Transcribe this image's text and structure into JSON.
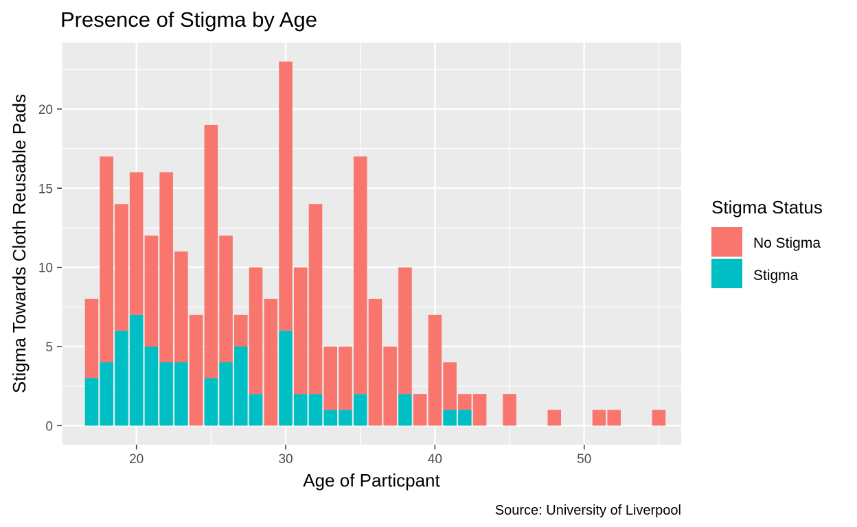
{
  "chart_data": {
    "type": "bar",
    "stacked": true,
    "title": "Presence of Stigma by Age",
    "xlabel": "Age of Particpant",
    "ylabel": "Stigma Towards Cloth Reusable Pads",
    "caption": "Source: University of Liverpool",
    "xlim": [
      15,
      56.5
    ],
    "ylim": [
      -1.2,
      24.2
    ],
    "x_ticks": [
      20,
      30,
      40,
      50
    ],
    "y_ticks": [
      0,
      5,
      10,
      15,
      20
    ],
    "grid": true,
    "legend": {
      "title": "Stigma Status",
      "position": "right",
      "entries": [
        {
          "label": "No Stigma",
          "color": "#F8766D"
        },
        {
          "label": "Stigma",
          "color": "#00BFC4"
        }
      ]
    },
    "x": [
      17,
      18,
      19,
      20,
      21,
      22,
      23,
      24,
      25,
      26,
      27,
      28,
      29,
      30,
      31,
      32,
      33,
      34,
      35,
      36,
      37,
      38,
      39,
      40,
      41,
      42,
      43,
      45,
      48,
      51,
      52,
      55
    ],
    "series": [
      {
        "name": "Stigma",
        "color": "#00BFC4",
        "values": [
          3,
          4,
          6,
          7,
          5,
          4,
          4,
          0,
          3,
          4,
          5,
          2,
          0,
          6,
          2,
          2,
          1,
          1,
          2,
          0,
          0,
          2,
          0,
          0,
          1,
          1,
          0,
          0,
          0,
          0,
          0,
          0
        ]
      },
      {
        "name": "No Stigma",
        "color": "#F8766D",
        "values": [
          5,
          13,
          8,
          9,
          7,
          12,
          7,
          7,
          16,
          8,
          2,
          8,
          8,
          17,
          8,
          12,
          4,
          4,
          15,
          8,
          5,
          8,
          2,
          7,
          3,
          1,
          2,
          2,
          1,
          1,
          1,
          1
        ]
      }
    ]
  },
  "colors": {
    "panel_background": "#EBEBEB",
    "gridline": "#FFFFFF",
    "tick_label": "#4D4D4D"
  }
}
